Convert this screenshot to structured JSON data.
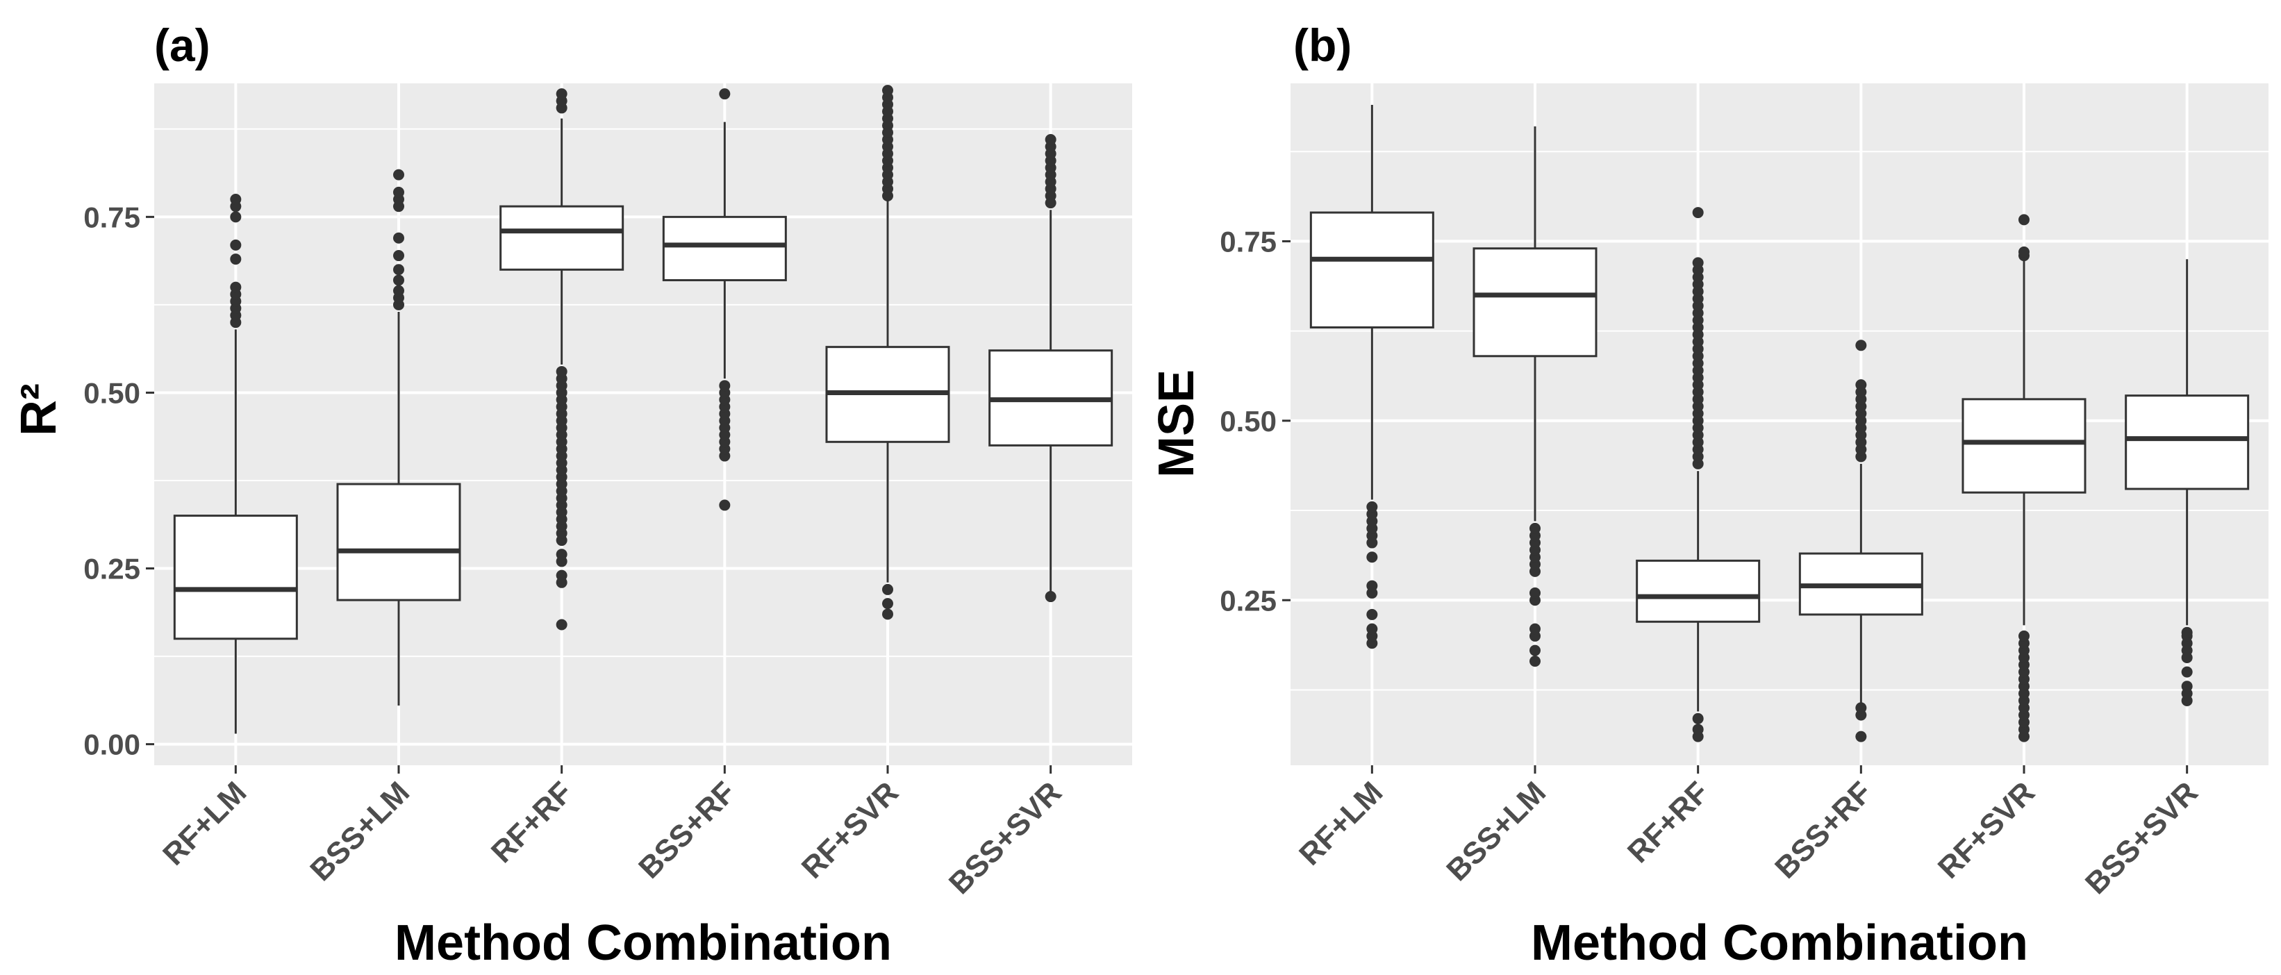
{
  "chart_data": [
    {
      "type": "boxplot",
      "panel_label": "(a)",
      "xlabel": "Method Combination",
      "ylabel": "R²",
      "ylim": [
        -0.03,
        0.94
      ],
      "yticks": [
        0.0,
        0.25,
        0.5,
        0.75
      ],
      "ytick_labels": [
        "0.00",
        "0.25",
        "0.50",
        "0.75"
      ],
      "yminor": [
        0.125,
        0.375,
        0.625,
        0.875
      ],
      "categories": [
        "RF+LM",
        "BSS+LM",
        "RF+RF",
        "BSS+RF",
        "RF+SVR",
        "BSS+SVR"
      ],
      "boxes": [
        {
          "q1": 0.15,
          "median": 0.22,
          "q3": 0.325,
          "whisker_low": 0.015,
          "whisker_high": 0.59,
          "outliers": [
            0.6,
            0.61,
            0.62,
            0.63,
            0.64,
            0.65,
            0.69,
            0.71,
            0.75,
            0.765,
            0.775
          ]
        },
        {
          "q1": 0.205,
          "median": 0.275,
          "q3": 0.37,
          "whisker_low": 0.055,
          "whisker_high": 0.615,
          "outliers": [
            0.625,
            0.635,
            0.645,
            0.66,
            0.675,
            0.695,
            0.72,
            0.765,
            0.775,
            0.785,
            0.81
          ]
        },
        {
          "q1": 0.675,
          "median": 0.73,
          "q3": 0.765,
          "whisker_low": 0.54,
          "whisker_high": 0.89,
          "outliers": [
            0.17,
            0.23,
            0.24,
            0.26,
            0.27,
            0.29,
            0.3,
            0.31,
            0.32,
            0.33,
            0.34,
            0.35,
            0.36,
            0.37,
            0.38,
            0.39,
            0.4,
            0.41,
            0.42,
            0.43,
            0.44,
            0.45,
            0.46,
            0.47,
            0.48,
            0.49,
            0.5,
            0.51,
            0.52,
            0.53,
            0.905,
            0.915,
            0.925
          ]
        },
        {
          "q1": 0.66,
          "median": 0.71,
          "q3": 0.75,
          "whisker_low": 0.52,
          "whisker_high": 0.885,
          "outliers": [
            0.34,
            0.41,
            0.42,
            0.43,
            0.44,
            0.45,
            0.46,
            0.47,
            0.48,
            0.49,
            0.5,
            0.51,
            0.925
          ]
        },
        {
          "q1": 0.43,
          "median": 0.5,
          "q3": 0.565,
          "whisker_low": 0.23,
          "whisker_high": 0.775,
          "outliers": [
            0.185,
            0.2,
            0.22,
            0.78,
            0.79,
            0.8,
            0.81,
            0.82,
            0.83,
            0.84,
            0.85,
            0.86,
            0.87,
            0.88,
            0.89,
            0.9,
            0.91,
            0.92,
            0.93
          ]
        },
        {
          "q1": 0.425,
          "median": 0.49,
          "q3": 0.56,
          "whisker_low": 0.215,
          "whisker_high": 0.76,
          "outliers": [
            0.21,
            0.77,
            0.78,
            0.79,
            0.8,
            0.81,
            0.82,
            0.83,
            0.84,
            0.85,
            0.86
          ]
        }
      ]
    },
    {
      "type": "boxplot",
      "panel_label": "(b)",
      "xlabel": "Method Combination",
      "ylabel": "MSE",
      "ylim": [
        0.02,
        0.97
      ],
      "yticks": [
        0.25,
        0.5,
        0.75
      ],
      "ytick_labels": [
        "0.25",
        "0.50",
        "0.75"
      ],
      "yminor": [
        0.125,
        0.375,
        0.625,
        0.875
      ],
      "categories": [
        "RF+LM",
        "BSS+LM",
        "RF+RF",
        "BSS+RF",
        "RF+SVR",
        "BSS+SVR"
      ],
      "boxes": [
        {
          "q1": 0.63,
          "median": 0.725,
          "q3": 0.79,
          "whisker_low": 0.39,
          "whisker_high": 0.94,
          "outliers": [
            0.19,
            0.2,
            0.21,
            0.23,
            0.26,
            0.27,
            0.31,
            0.33,
            0.34,
            0.35,
            0.36,
            0.37,
            0.38
          ]
        },
        {
          "q1": 0.59,
          "median": 0.675,
          "q3": 0.74,
          "whisker_low": 0.36,
          "whisker_high": 0.91,
          "outliers": [
            0.165,
            0.18,
            0.2,
            0.21,
            0.25,
            0.26,
            0.29,
            0.3,
            0.31,
            0.32,
            0.33,
            0.34,
            0.35
          ]
        },
        {
          "q1": 0.22,
          "median": 0.255,
          "q3": 0.305,
          "whisker_low": 0.095,
          "whisker_high": 0.43,
          "outliers": [
            0.06,
            0.07,
            0.085,
            0.44,
            0.45,
            0.46,
            0.47,
            0.48,
            0.49,
            0.5,
            0.51,
            0.52,
            0.53,
            0.54,
            0.55,
            0.56,
            0.57,
            0.58,
            0.59,
            0.6,
            0.61,
            0.62,
            0.63,
            0.64,
            0.65,
            0.66,
            0.67,
            0.68,
            0.69,
            0.7,
            0.71,
            0.72,
            0.79
          ]
        },
        {
          "q1": 0.23,
          "median": 0.27,
          "q3": 0.315,
          "whisker_low": 0.105,
          "whisker_high": 0.44,
          "outliers": [
            0.06,
            0.09,
            0.1,
            0.45,
            0.46,
            0.47,
            0.48,
            0.49,
            0.5,
            0.51,
            0.52,
            0.53,
            0.54,
            0.55,
            0.605
          ]
        },
        {
          "q1": 0.4,
          "median": 0.47,
          "q3": 0.53,
          "whisker_low": 0.215,
          "whisker_high": 0.725,
          "outliers": [
            0.06,
            0.07,
            0.08,
            0.09,
            0.1,
            0.11,
            0.12,
            0.13,
            0.14,
            0.15,
            0.16,
            0.17,
            0.18,
            0.19,
            0.2,
            0.73,
            0.735,
            0.78
          ]
        },
        {
          "q1": 0.405,
          "median": 0.475,
          "q3": 0.535,
          "whisker_low": 0.215,
          "whisker_high": 0.725,
          "outliers": [
            0.11,
            0.12,
            0.13,
            0.15,
            0.17,
            0.18,
            0.19,
            0.2,
            0.205
          ]
        }
      ]
    }
  ]
}
